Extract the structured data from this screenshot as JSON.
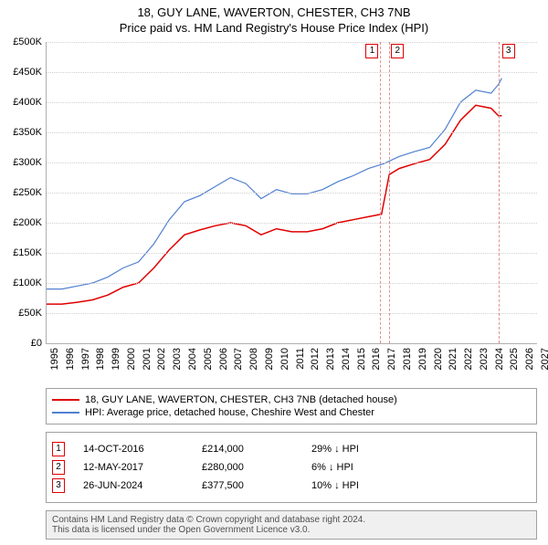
{
  "title": "18, GUY LANE, WAVERTON, CHESTER, CH3 7NB",
  "subtitle": "Price paid vs. HM Land Registry's House Price Index (HPI)",
  "chart": {
    "ylim": [
      0,
      500000
    ],
    "ytick_step": 50000,
    "yticks": [
      "£0",
      "£50K",
      "£100K",
      "£150K",
      "£200K",
      "£250K",
      "£300K",
      "£350K",
      "£400K",
      "£450K",
      "£500K"
    ],
    "xmin": 1995,
    "xmax": 2027,
    "xticks": [
      1995,
      1996,
      1997,
      1998,
      1999,
      2000,
      2001,
      2002,
      2003,
      2004,
      2005,
      2006,
      2007,
      2008,
      2009,
      2010,
      2011,
      2012,
      2013,
      2014,
      2015,
      2016,
      2017,
      2018,
      2019,
      2020,
      2021,
      2022,
      2023,
      2024,
      2025,
      2026,
      2027
    ],
    "background_color": "#ffffff",
    "grid_color": "#d0d0d0",
    "series": [
      {
        "name": "price_paid",
        "color": "#e00000",
        "width": 1.5,
        "points": [
          [
            1995,
            65000
          ],
          [
            1996,
            65000
          ],
          [
            1997,
            68000
          ],
          [
            1998,
            72000
          ],
          [
            1999,
            80000
          ],
          [
            2000,
            93000
          ],
          [
            2001,
            100000
          ],
          [
            2002,
            125000
          ],
          [
            2003,
            155000
          ],
          [
            2004,
            180000
          ],
          [
            2005,
            188000
          ],
          [
            2006,
            195000
          ],
          [
            2007,
            200000
          ],
          [
            2008,
            195000
          ],
          [
            2009,
            180000
          ],
          [
            2010,
            190000
          ],
          [
            2011,
            185000
          ],
          [
            2012,
            185000
          ],
          [
            2013,
            190000
          ],
          [
            2014,
            200000
          ],
          [
            2015,
            205000
          ],
          [
            2016,
            210000
          ],
          [
            2016.8,
            214000
          ],
          [
            2016.85,
            214000
          ],
          [
            2017.36,
            280000
          ],
          [
            2018,
            290000
          ],
          [
            2019,
            298000
          ],
          [
            2020,
            305000
          ],
          [
            2021,
            330000
          ],
          [
            2022,
            370000
          ],
          [
            2023,
            395000
          ],
          [
            2024,
            390000
          ],
          [
            2024.48,
            377500
          ],
          [
            2024.7,
            377500
          ]
        ]
      },
      {
        "name": "hpi",
        "color": "#5080d0",
        "width": 1.2,
        "points": [
          [
            1995,
            90000
          ],
          [
            1996,
            90000
          ],
          [
            1997,
            95000
          ],
          [
            1998,
            100000
          ],
          [
            1999,
            110000
          ],
          [
            2000,
            125000
          ],
          [
            2001,
            135000
          ],
          [
            2002,
            165000
          ],
          [
            2003,
            205000
          ],
          [
            2004,
            235000
          ],
          [
            2005,
            245000
          ],
          [
            2006,
            260000
          ],
          [
            2007,
            275000
          ],
          [
            2008,
            265000
          ],
          [
            2009,
            240000
          ],
          [
            2010,
            255000
          ],
          [
            2011,
            248000
          ],
          [
            2012,
            248000
          ],
          [
            2013,
            255000
          ],
          [
            2014,
            268000
          ],
          [
            2015,
            278000
          ],
          [
            2016,
            290000
          ],
          [
            2017,
            298000
          ],
          [
            2018,
            310000
          ],
          [
            2019,
            318000
          ],
          [
            2020,
            325000
          ],
          [
            2021,
            355000
          ],
          [
            2022,
            400000
          ],
          [
            2023,
            420000
          ],
          [
            2024,
            415000
          ],
          [
            2024.5,
            430000
          ],
          [
            2024.7,
            440000
          ]
        ]
      }
    ],
    "markers": [
      {
        "num": "1",
        "x": 2016.78
      },
      {
        "num": "2",
        "x": 2017.36
      },
      {
        "num": "3",
        "x": 2024.48
      }
    ]
  },
  "legend": {
    "items": [
      {
        "color": "#e00000",
        "label": "18, GUY LANE, WAVERTON, CHESTER, CH3 7NB (detached house)"
      },
      {
        "color": "#5080d0",
        "label": "HPI: Average price, detached house, Cheshire West and Chester"
      }
    ]
  },
  "events": [
    {
      "num": "1",
      "date": "14-OCT-2016",
      "price": "£214,000",
      "delta": "29% ↓ HPI"
    },
    {
      "num": "2",
      "date": "12-MAY-2017",
      "price": "£280,000",
      "delta": "6% ↓ HPI"
    },
    {
      "num": "3",
      "date": "26-JUN-2024",
      "price": "£377,500",
      "delta": "10% ↓ HPI"
    }
  ],
  "footer": {
    "line1": "Contains HM Land Registry data © Crown copyright and database right 2024.",
    "line2": "This data is licensed under the Open Government Licence v3.0."
  }
}
